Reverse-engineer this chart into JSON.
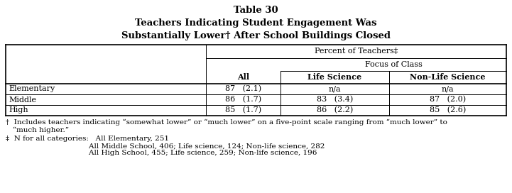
{
  "title_line1": "Table 30",
  "title_line2": "Teachers Indicating Student Engagement Was",
  "title_line3": "Substantially Lower† After School Buildings Closed",
  "col_header1": "Percent of Teachers‡",
  "col_header2": "Focus of Class",
  "col_all": "All",
  "col_life": "Life Science",
  "col_nonlife": "Non-Life Science",
  "rows": [
    {
      "label": "Elementary",
      "all": "87   (2.1)",
      "life": "n/a",
      "nonlife": "n/a"
    },
    {
      "label": "Middle",
      "all": "86   (1.7)",
      "life": "83   (3.4)",
      "nonlife": "87   (2.0)"
    },
    {
      "label": "High",
      "all": "85   (1.7)",
      "life": "86   (2.2)",
      "nonlife": "85   (2.6)"
    }
  ],
  "footnote1": "†  Includes teachers indicating “somewhat lower” or “much lower” on a five-point scale ranging from “much lower” to",
  "footnote1b": "   “much higher.”",
  "footnote2": "‡  N for all categories:   All Elementary, 251",
  "footnote2b": "                                    All Middle School, 406; Life science, 124; Non-life science, 282",
  "footnote2c": "                                    All High School, 455; Life science, 259; Non-life science, 196",
  "bg_color": "#ffffff",
  "text_color": "#000000",
  "title_fontsize": 9.5,
  "table_fontsize": 8.0,
  "footnote_fontsize": 7.5
}
